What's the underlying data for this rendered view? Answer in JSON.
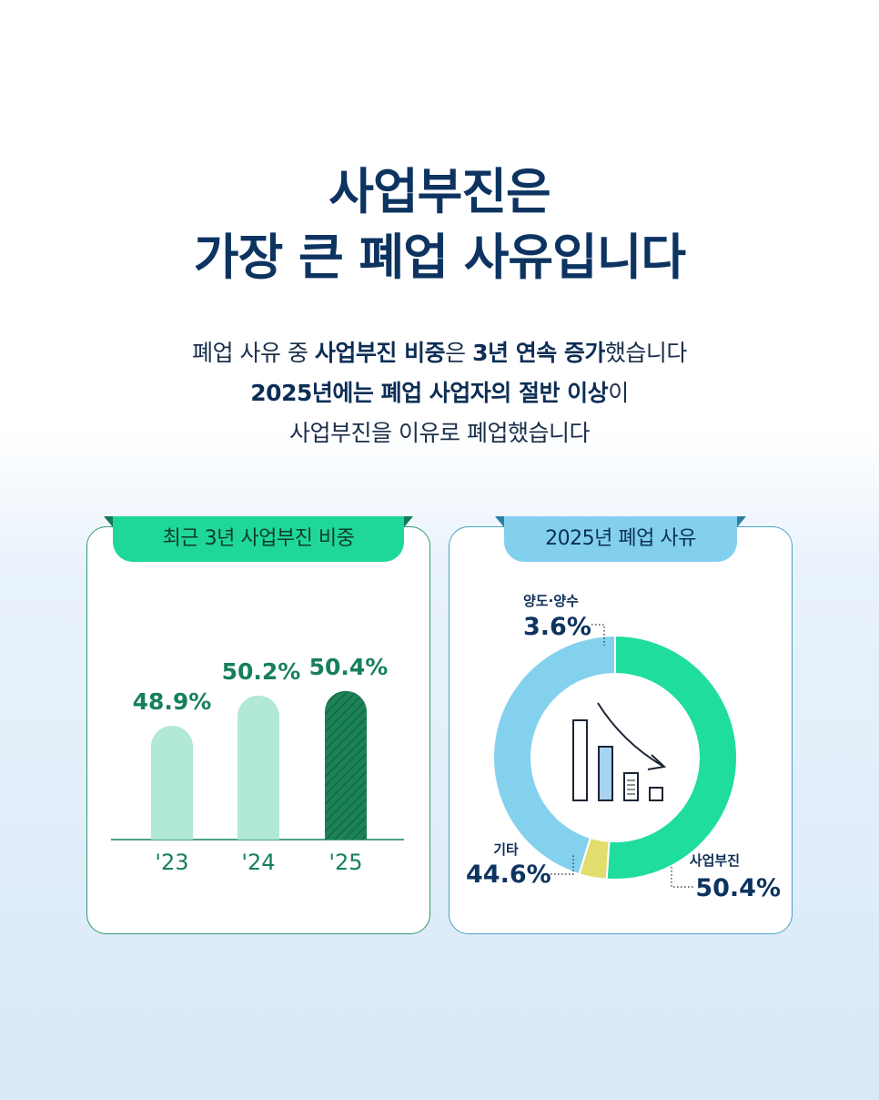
{
  "title": {
    "line1": "사업부진은",
    "line2": "가장 큰 폐업 사유입니다"
  },
  "subtitle": {
    "l1_a": "폐업 사유 중 ",
    "l1_b": "사업부진 비중",
    "l1_c": "은 ",
    "l1_d": "3년 연속 증가",
    "l1_e": "했습니다",
    "l2_a": "2025년에는 폐업 사업자의 절반 이상",
    "l2_b": "이",
    "l3": "사업부진을 이유로 폐업했습니다"
  },
  "left_card": {
    "tab": "최근 3년 사업부진 비중"
  },
  "right_card": {
    "tab": "2025년 폐업 사유"
  },
  "colors": {
    "bar_light": "#b1e8d7",
    "bar_dark": "#1c8258",
    "slice_main": "#1fdc9f",
    "slice_other": "#84d1ed",
    "slice_transfer": "#e3dd6e"
  },
  "chart_data": [
    {
      "type": "bar",
      "title": "최근 3년 사업부진 비중",
      "categories": [
        "'23",
        "'24",
        "'25"
      ],
      "values": [
        48.9,
        50.2,
        50.4
      ],
      "value_labels": [
        "48.9%",
        "50.2%",
        "50.4%"
      ],
      "highlight": "'25"
    },
    {
      "type": "pie",
      "title": "2025년 폐업 사유",
      "slices": [
        {
          "label": "사업부진",
          "value": 50.4,
          "value_label": "50.4%"
        },
        {
          "label": "양도·양수",
          "value": 3.6,
          "value_label": "3.6%"
        },
        {
          "label": "기타",
          "value": 44.6,
          "value_label": "44.6%"
        }
      ]
    }
  ]
}
